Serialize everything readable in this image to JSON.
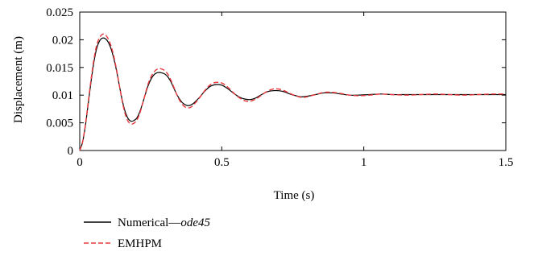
{
  "chart_data": {
    "type": "line",
    "title": "",
    "xlabel": "Time (s)",
    "ylabel": "Displacement (m)",
    "xlim": [
      0,
      1.5
    ],
    "ylim": [
      0,
      0.025
    ],
    "xticks": [
      0,
      0.5,
      1,
      1.5
    ],
    "xtick_labels": [
      "0",
      "0.5",
      "1",
      "1.5"
    ],
    "yticks": [
      0,
      0.005,
      0.01,
      0.015,
      0.02,
      0.025
    ],
    "ytick_labels": [
      "0",
      "0.005",
      "0.01",
      "0.015",
      "0.02",
      "0.025"
    ],
    "grid": false,
    "legend_position": "bottom-left, below plot",
    "series": [
      {
        "name": "Numerical—",
        "name_suffix": "ode45",
        "color": "#000000",
        "dash": "solid",
        "x": [
          0,
          0.01,
          0.02,
          0.03,
          0.04,
          0.05,
          0.06,
          0.07,
          0.08,
          0.09,
          0.1,
          0.11,
          0.12,
          0.13,
          0.14,
          0.15,
          0.16,
          0.17,
          0.18,
          0.19,
          0.2,
          0.21,
          0.22,
          0.23,
          0.24,
          0.25,
          0.26,
          0.27,
          0.28,
          0.29,
          0.3,
          0.31,
          0.32,
          0.33,
          0.34,
          0.35,
          0.36,
          0.37,
          0.38,
          0.39,
          0.4,
          0.42,
          0.44,
          0.46,
          0.48,
          0.5,
          0.52,
          0.54,
          0.56,
          0.58,
          0.6,
          0.62,
          0.64,
          0.66,
          0.68,
          0.7,
          0.72,
          0.74,
          0.76,
          0.78,
          0.8,
          0.83,
          0.86,
          0.89,
          0.92,
          0.95,
          0.98,
          1.02,
          1.06,
          1.1,
          1.15,
          1.2,
          1.25,
          1.3,
          1.35,
          1.4,
          1.45,
          1.5
        ],
        "y": [
          0,
          0.0015,
          0.0045,
          0.0085,
          0.0125,
          0.016,
          0.0185,
          0.0198,
          0.0203,
          0.0202,
          0.0196,
          0.0184,
          0.0166,
          0.0143,
          0.0116,
          0.009,
          0.007,
          0.0058,
          0.0053,
          0.0054,
          0.0058,
          0.0068,
          0.0083,
          0.01,
          0.0116,
          0.0128,
          0.0136,
          0.014,
          0.0141,
          0.014,
          0.0138,
          0.0133,
          0.0125,
          0.0114,
          0.0103,
          0.0094,
          0.0087,
          0.0083,
          0.0081,
          0.0082,
          0.0085,
          0.0095,
          0.0107,
          0.0116,
          0.0119,
          0.0118,
          0.0112,
          0.0104,
          0.0097,
          0.0093,
          0.0092,
          0.0095,
          0.0101,
          0.0106,
          0.0108,
          0.0108,
          0.0106,
          0.0102,
          0.0099,
          0.0097,
          0.0098,
          0.0101,
          0.0104,
          0.0104,
          0.0102,
          0.01,
          0.01,
          0.0101,
          0.0102,
          0.0101,
          0.0101,
          0.0101,
          0.0101,
          0.0101,
          0.0101,
          0.0101,
          0.0101,
          0.0101
        ]
      },
      {
        "name": "EMHPM",
        "color": "#e8383d",
        "dash": "dashed",
        "x": [
          0,
          0.01,
          0.02,
          0.03,
          0.04,
          0.05,
          0.06,
          0.07,
          0.08,
          0.09,
          0.1,
          0.11,
          0.12,
          0.13,
          0.14,
          0.15,
          0.16,
          0.17,
          0.18,
          0.19,
          0.2,
          0.21,
          0.22,
          0.23,
          0.24,
          0.25,
          0.26,
          0.27,
          0.28,
          0.29,
          0.3,
          0.31,
          0.32,
          0.33,
          0.34,
          0.35,
          0.36,
          0.37,
          0.38,
          0.39,
          0.4,
          0.42,
          0.44,
          0.46,
          0.48,
          0.5,
          0.52,
          0.54,
          0.56,
          0.58,
          0.6,
          0.62,
          0.64,
          0.66,
          0.68,
          0.7,
          0.72,
          0.74,
          0.76,
          0.78,
          0.8,
          0.83,
          0.86,
          0.89,
          0.92,
          0.95,
          0.98,
          1.02,
          1.06,
          1.1,
          1.15,
          1.2,
          1.25,
          1.3,
          1.35,
          1.4,
          1.45,
          1.5
        ],
        "y": [
          0,
          0.0016,
          0.0047,
          0.0088,
          0.0129,
          0.0165,
          0.0191,
          0.0204,
          0.021,
          0.0209,
          0.0202,
          0.0189,
          0.017,
          0.0145,
          0.0116,
          0.0088,
          0.0066,
          0.0053,
          0.0048,
          0.0049,
          0.0054,
          0.0065,
          0.0082,
          0.0101,
          0.0119,
          0.0132,
          0.0141,
          0.0146,
          0.0148,
          0.0147,
          0.0144,
          0.0138,
          0.0128,
          0.0116,
          0.0103,
          0.0092,
          0.0084,
          0.0079,
          0.0077,
          0.0078,
          0.0082,
          0.0094,
          0.0108,
          0.0119,
          0.0123,
          0.0122,
          0.0115,
          0.0105,
          0.0096,
          0.009,
          0.0089,
          0.0093,
          0.01,
          0.0107,
          0.0111,
          0.0111,
          0.0108,
          0.0103,
          0.0099,
          0.0096,
          0.0097,
          0.0101,
          0.0105,
          0.0105,
          0.0103,
          0.01,
          0.0099,
          0.01,
          0.0102,
          0.0101,
          0.01,
          0.0101,
          0.0102,
          0.0101,
          0.01,
          0.0101,
          0.0102,
          0.0102
        ]
      }
    ]
  }
}
